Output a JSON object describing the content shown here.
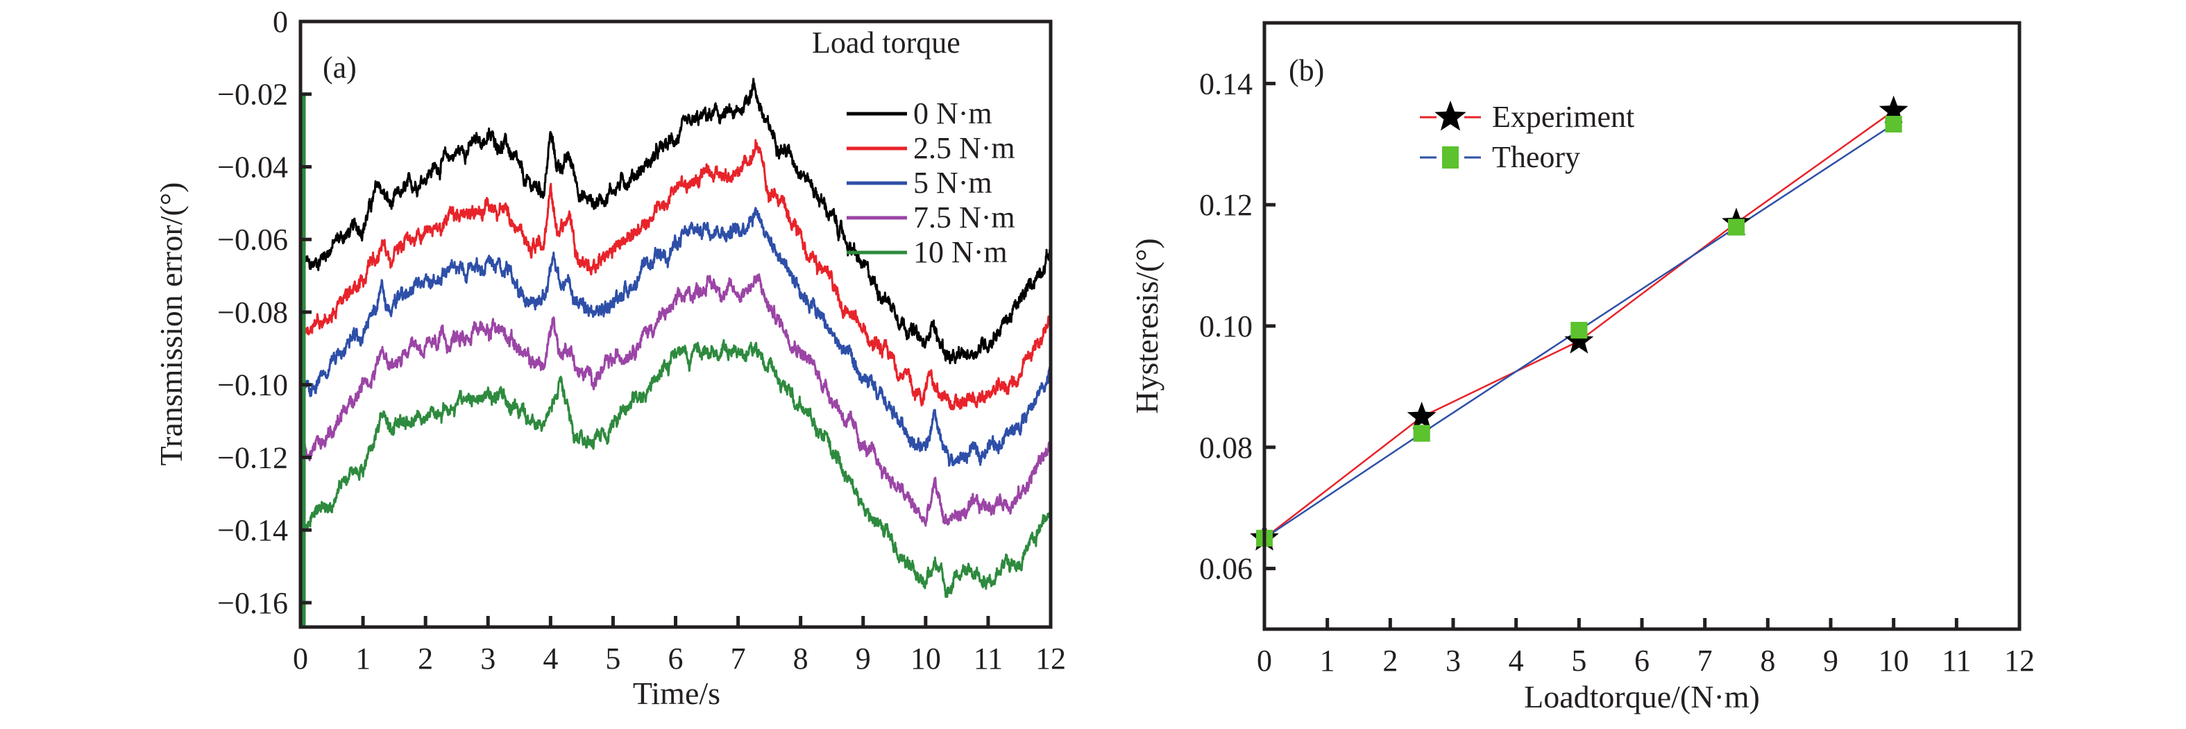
{
  "chart_data": [
    {
      "id": "a",
      "type": "line",
      "panel_label": "(a)",
      "title": "",
      "xlabel": "Time/s",
      "ylabel": "Transmission error/(°)",
      "xlim": [
        0,
        12
      ],
      "ylim": [
        -0.1667,
        0
      ],
      "xticks": [
        0,
        1,
        2,
        3,
        4,
        5,
        6,
        7,
        8,
        9,
        10,
        11,
        12
      ],
      "xtick_labels": [
        "0",
        "1",
        "2",
        "3",
        "4",
        "5",
        "6",
        "7",
        "8",
        "9",
        "10",
        "11",
        "12"
      ],
      "yticks": [
        0,
        -0.02,
        -0.04,
        -0.06,
        -0.08,
        -0.1,
        -0.12,
        -0.14,
        -0.16
      ],
      "ytick_labels": [
        "0",
        "−0.02",
        "−0.04",
        "−0.06",
        "−0.08",
        "−0.10",
        "−0.12",
        "−0.14",
        "−0.16"
      ],
      "grid": false,
      "legend": {
        "title": "Load torque",
        "placement": "top-right"
      },
      "noise_amplitude": 0.0022,
      "series": [
        {
          "name": "0 N·m",
          "color": "#000000",
          "x": [
            0,
            0.15,
            0.6,
            1.0,
            1.25,
            1.45,
            1.6,
            2.0,
            2.5,
            3.0,
            3.3,
            3.6,
            3.9,
            4.0,
            4.1,
            4.3,
            4.5,
            4.7,
            5.0,
            5.5,
            6.0,
            6.5,
            7.0,
            7.25,
            7.45,
            8.0,
            8.5,
            9.0,
            9.5,
            10.0,
            10.1,
            10.2,
            10.45,
            11.0,
            11.5,
            12.0
          ],
          "y": [
            -0.064,
            -0.068,
            -0.06,
            -0.056,
            -0.045,
            -0.051,
            -0.048,
            -0.042,
            -0.036,
            -0.032,
            -0.034,
            -0.045,
            -0.046,
            -0.031,
            -0.04,
            -0.038,
            -0.048,
            -0.05,
            -0.046,
            -0.04,
            -0.032,
            -0.026,
            -0.026,
            -0.017,
            -0.029,
            -0.04,
            -0.054,
            -0.068,
            -0.079,
            -0.09,
            -0.081,
            -0.088,
            -0.094,
            -0.088,
            -0.078,
            -0.063
          ]
        },
        {
          "name": "2.5 N·m",
          "color": "#e8232a",
          "x": [
            0,
            0.15,
            0.6,
            1.0,
            1.3,
            1.45,
            1.6,
            2.0,
            2.5,
            3.0,
            3.3,
            3.6,
            3.9,
            4.0,
            4.1,
            4.3,
            4.45,
            4.7,
            5.0,
            5.5,
            6.0,
            6.5,
            7.0,
            7.3,
            7.5,
            8.0,
            8.5,
            9.0,
            9.5,
            9.95,
            10.1,
            10.25,
            10.5,
            11.0,
            11.5,
            12.0
          ],
          "y": [
            -0.084,
            -0.088,
            -0.078,
            -0.072,
            -0.06,
            -0.066,
            -0.062,
            -0.058,
            -0.054,
            -0.052,
            -0.052,
            -0.06,
            -0.062,
            -0.047,
            -0.058,
            -0.053,
            -0.065,
            -0.068,
            -0.063,
            -0.055,
            -0.046,
            -0.041,
            -0.043,
            -0.035,
            -0.046,
            -0.06,
            -0.073,
            -0.086,
            -0.094,
            -0.104,
            -0.097,
            -0.104,
            -0.106,
            -0.103,
            -0.098,
            -0.082
          ]
        },
        {
          "name": "5 N·m",
          "color": "#2e4fa8",
          "x": [
            0,
            0.15,
            0.6,
            1.0,
            1.3,
            1.45,
            1.6,
            2.0,
            2.5,
            3.0,
            3.3,
            3.6,
            3.9,
            4.05,
            4.15,
            4.3,
            4.45,
            4.7,
            5.0,
            5.5,
            6.0,
            6.5,
            7.0,
            7.3,
            7.5,
            8.0,
            8.5,
            9.0,
            9.5,
            10.0,
            10.15,
            10.3,
            10.5,
            11.0,
            11.5,
            12.0
          ],
          "y": [
            -0.1,
            -0.101,
            -0.092,
            -0.086,
            -0.075,
            -0.08,
            -0.077,
            -0.072,
            -0.068,
            -0.066,
            -0.067,
            -0.076,
            -0.077,
            -0.063,
            -0.074,
            -0.071,
            -0.079,
            -0.081,
            -0.077,
            -0.069,
            -0.061,
            -0.056,
            -0.058,
            -0.051,
            -0.06,
            -0.073,
            -0.086,
            -0.099,
            -0.108,
            -0.119,
            -0.11,
            -0.12,
            -0.121,
            -0.117,
            -0.112,
            -0.096
          ]
        },
        {
          "name": "7.5 N·m",
          "color": "#9b45a6",
          "x": [
            0,
            0.15,
            0.6,
            1.0,
            1.3,
            1.45,
            1.6,
            2.0,
            2.5,
            3.0,
            3.3,
            3.6,
            3.9,
            4.05,
            4.15,
            4.3,
            4.45,
            4.7,
            5.0,
            5.5,
            6.0,
            6.5,
            7.0,
            7.3,
            7.5,
            8.0,
            8.5,
            9.0,
            9.5,
            10.0,
            10.15,
            10.3,
            10.5,
            11.0,
            11.5,
            12.0
          ],
          "y": [
            -0.118,
            -0.119,
            -0.109,
            -0.101,
            -0.091,
            -0.096,
            -0.093,
            -0.09,
            -0.087,
            -0.084,
            -0.085,
            -0.093,
            -0.095,
            -0.081,
            -0.092,
            -0.089,
            -0.097,
            -0.098,
            -0.094,
            -0.086,
            -0.078,
            -0.072,
            -0.075,
            -0.071,
            -0.079,
            -0.09,
            -0.103,
            -0.117,
            -0.127,
            -0.138,
            -0.128,
            -0.137,
            -0.136,
            -0.133,
            -0.131,
            -0.116
          ]
        },
        {
          "name": "10 N·m",
          "color": "#2e8a3e",
          "x": [
            0,
            0.15,
            0.6,
            1.0,
            1.3,
            1.45,
            1.6,
            2.0,
            2.5,
            3.0,
            3.3,
            3.6,
            3.9,
            4.05,
            4.15,
            4.3,
            4.45,
            4.7,
            5.0,
            5.5,
            6.0,
            6.5,
            7.0,
            7.3,
            7.5,
            8.0,
            8.5,
            9.0,
            9.5,
            10.0,
            10.15,
            10.3,
            10.5,
            11.0,
            11.5,
            12.0
          ],
          "y": [
            -0.138,
            -0.137,
            -0.129,
            -0.122,
            -0.11,
            -0.112,
            -0.11,
            -0.108,
            -0.106,
            -0.102,
            -0.104,
            -0.11,
            -0.113,
            -0.103,
            -0.099,
            -0.108,
            -0.114,
            -0.116,
            -0.11,
            -0.101,
            -0.093,
            -0.09,
            -0.092,
            -0.092,
            -0.096,
            -0.105,
            -0.117,
            -0.132,
            -0.145,
            -0.155,
            -0.148,
            -0.156,
            -0.153,
            -0.152,
            -0.149,
            -0.134
          ]
        }
      ]
    },
    {
      "id": "b",
      "type": "line",
      "panel_label": "(b)",
      "title": "",
      "xlabel": "Loadtorque/(N·m)",
      "ylabel": "Hysteresis/(°)",
      "xlim": [
        0,
        12
      ],
      "ylim": [
        0.05,
        0.15
      ],
      "xticks": [
        0,
        1,
        2,
        3,
        4,
        5,
        6,
        7,
        8,
        9,
        10,
        11,
        12
      ],
      "xtick_labels": [
        "0",
        "1",
        "2",
        "3",
        "4",
        "5",
        "6",
        "7",
        "8",
        "9",
        "10",
        "11",
        "12"
      ],
      "yticks": [
        0.06,
        0.08,
        0.1,
        0.12,
        0.14
      ],
      "ytick_labels": [
        "0.06",
        "0.08",
        "0.10",
        "0.12",
        "0.14"
      ],
      "grid": false,
      "legend": {
        "placement": "top-left"
      },
      "series": [
        {
          "name": "Experiment",
          "marker": "star",
          "marker_color": "#000000",
          "line_color": "#e8232a",
          "x": [
            0,
            2.5,
            5,
            7.5,
            10
          ],
          "y": [
            0.065,
            0.085,
            0.0975,
            0.117,
            0.1355
          ]
        },
        {
          "name": "Theory",
          "marker": "square",
          "marker_color": "#5cc22e",
          "line_color": "#2e4fa8",
          "x": [
            0,
            2.5,
            5,
            7.5,
            10
          ],
          "y": [
            0.065,
            0.0823,
            0.0993,
            0.1163,
            0.1333
          ]
        }
      ]
    }
  ]
}
